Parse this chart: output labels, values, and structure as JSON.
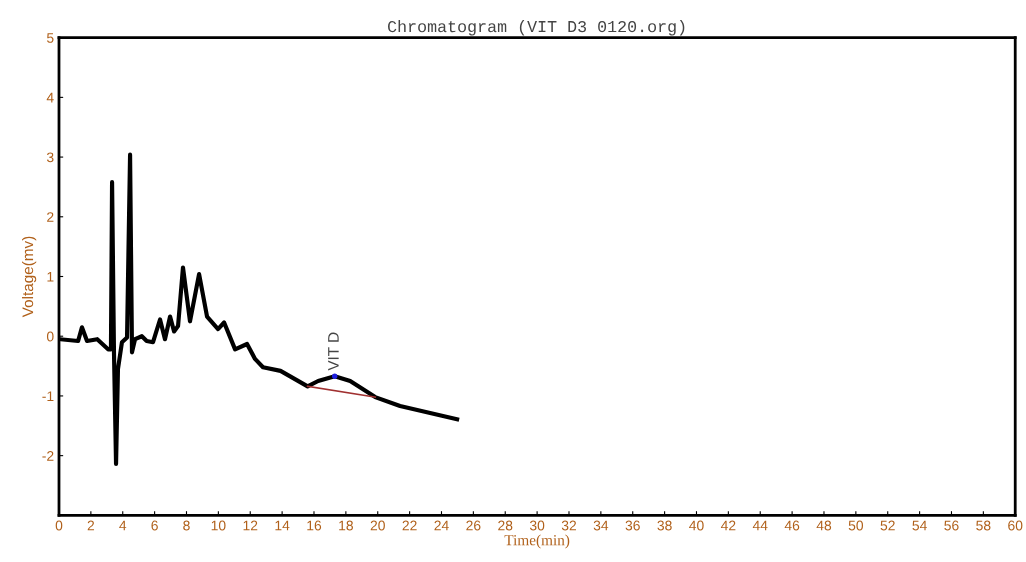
{
  "chart_data": {
    "type": "line",
    "title": "Chromatogram (VIT D3 0120.org)",
    "xlabel": "Time(min)",
    "ylabel": "Voltage(mv)",
    "xlim": [
      0,
      60
    ],
    "xticks": [
      0,
      2,
      4,
      6,
      8,
      10,
      12,
      14,
      16,
      18,
      20,
      22,
      24,
      26,
      28,
      30,
      32,
      34,
      36,
      38,
      40,
      42,
      44,
      46,
      48,
      50,
      52,
      54,
      56,
      58,
      60
    ],
    "ylim": [
      -3,
      5
    ],
    "yticks": [
      -2,
      -1,
      0,
      1,
      2,
      3,
      4,
      5
    ],
    "grid": false,
    "legend": false,
    "annotations": [
      {
        "text": "VIT D",
        "x": 17.3,
        "y": -0.67
      }
    ],
    "series": [
      {
        "color": "#000000",
        "x": [
          0.06,
          1.2,
          1.44,
          1.76,
          2.4,
          3.08,
          3.26,
          3.33,
          3.45,
          3.58,
          3.7,
          3.95,
          4.27,
          4.46,
          4.58,
          4.77,
          5.2,
          5.5,
          5.9,
          6.34,
          6.65,
          6.97,
          7.22,
          7.47,
          7.78,
          8.22,
          8.79,
          9.29,
          9.98,
          10.36,
          11.05,
          11.8,
          12.3,
          12.8,
          13.9,
          15.6,
          16.26,
          17.3,
          18.27,
          19.84,
          21.4,
          24.98
        ],
        "values": [
          -0.05,
          -0.08,
          0.15,
          -0.08,
          -0.05,
          -0.22,
          -0.22,
          2.58,
          -0.27,
          -2.14,
          -0.55,
          -0.1,
          -0.02,
          3.04,
          -0.27,
          -0.05,
          0,
          -0.08,
          -0.1,
          0.28,
          -0.05,
          0.33,
          0.08,
          0.17,
          1.15,
          0.25,
          1.04,
          0.33,
          0.12,
          0.23,
          -0.22,
          -0.13,
          -0.38,
          -0.52,
          -0.58,
          -0.84,
          -0.75,
          -0.67,
          -0.75,
          -1.02,
          -1.17,
          -1.39
        ]
      },
      {
        "color": "#a03030",
        "x": [
          15.6,
          19.84
        ],
        "values": [
          -0.84,
          -1.02
        ]
      }
    ]
  }
}
